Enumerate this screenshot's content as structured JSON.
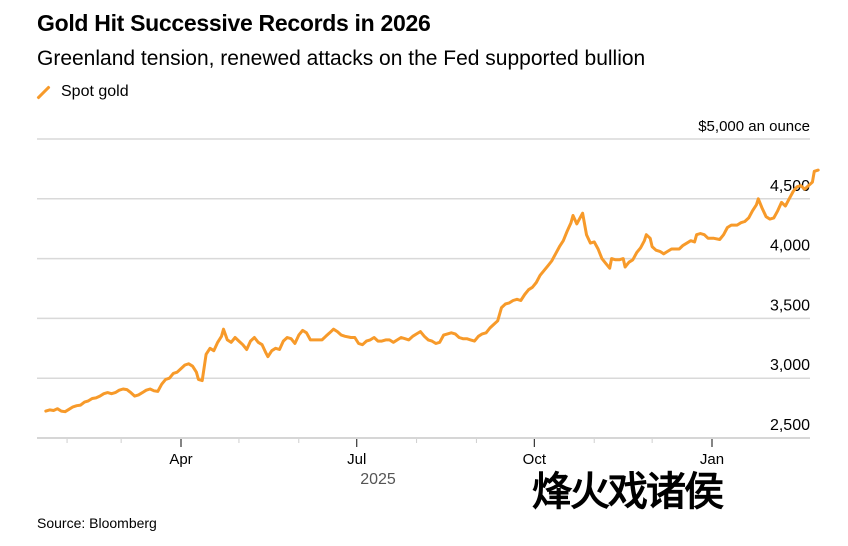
{
  "header": {
    "title": "Gold Hit Successive Records in 2026",
    "subtitle": "Greenland tension, renewed attacks on the Fed supported bullion"
  },
  "legend": {
    "label": "Spot gold",
    "color": "#f79a2a"
  },
  "footer": {
    "source": "Source: Bloomberg"
  },
  "watermark": {
    "text": "烽火戏诸侯"
  },
  "chart_data": {
    "type": "line",
    "title": "Gold Hit Successive Records in 2026",
    "subtitle": "Greenland tension, renewed attacks on the Fed supported bullion",
    "ylabel": "$ an ounce",
    "unit_label": "$5,000 an ounce",
    "ylim": [
      2500,
      5000
    ],
    "y_ticks": [
      {
        "value": 5000,
        "label": "$5,000 an ounce"
      },
      {
        "value": 4500,
        "label": "4,500"
      },
      {
        "value": 4000,
        "label": "4,000"
      },
      {
        "value": 3500,
        "label": "3,500"
      },
      {
        "value": 3000,
        "label": "3,000"
      },
      {
        "value": 2500,
        "label": "2,500"
      }
    ],
    "x_unit": "days since 2025-01-01",
    "xlim": [
      0,
      400
    ],
    "x_ticks_major": [
      {
        "value": 90,
        "label": "Apr"
      },
      {
        "value": 181,
        "label": "Jul"
      },
      {
        "value": 273,
        "label": "Oct"
      },
      {
        "value": 365,
        "label": "Jan"
      }
    ],
    "x_ticks_minor": [
      31,
      59,
      120,
      151,
      212,
      243,
      304,
      334
    ],
    "x_year_label": "2025",
    "grid": true,
    "legend_position": "top-left",
    "series": [
      {
        "name": "Spot gold",
        "color": "#f79a2a",
        "points": [
          [
            20,
            2725
          ],
          [
            22,
            2735
          ],
          [
            24,
            2730
          ],
          [
            26,
            2745
          ],
          [
            28,
            2725
          ],
          [
            30,
            2720
          ],
          [
            32,
            2740
          ],
          [
            34,
            2760
          ],
          [
            36,
            2770
          ],
          [
            38,
            2775
          ],
          [
            40,
            2800
          ],
          [
            42,
            2810
          ],
          [
            44,
            2830
          ],
          [
            46,
            2835
          ],
          [
            48,
            2850
          ],
          [
            50,
            2870
          ],
          [
            52,
            2880
          ],
          [
            54,
            2870
          ],
          [
            56,
            2880
          ],
          [
            58,
            2900
          ],
          [
            60,
            2910
          ],
          [
            62,
            2905
          ],
          [
            64,
            2880
          ],
          [
            66,
            2850
          ],
          [
            68,
            2860
          ],
          [
            70,
            2880
          ],
          [
            72,
            2900
          ],
          [
            74,
            2910
          ],
          [
            76,
            2895
          ],
          [
            78,
            2890
          ],
          [
            80,
            2950
          ],
          [
            82,
            2990
          ],
          [
            84,
            3000
          ],
          [
            86,
            3040
          ],
          [
            88,
            3050
          ],
          [
            90,
            3080
          ],
          [
            92,
            3110
          ],
          [
            94,
            3120
          ],
          [
            96,
            3100
          ],
          [
            98,
            3050
          ],
          [
            99,
            2990
          ],
          [
            101,
            2980
          ],
          [
            103,
            3200
          ],
          [
            105,
            3250
          ],
          [
            107,
            3230
          ],
          [
            109,
            3300
          ],
          [
            111,
            3350
          ],
          [
            112,
            3410
          ],
          [
            114,
            3320
          ],
          [
            116,
            3300
          ],
          [
            118,
            3340
          ],
          [
            120,
            3310
          ],
          [
            122,
            3280
          ],
          [
            124,
            3240
          ],
          [
            126,
            3310
          ],
          [
            128,
            3340
          ],
          [
            130,
            3300
          ],
          [
            132,
            3280
          ],
          [
            134,
            3210
          ],
          [
            135,
            3180
          ],
          [
            137,
            3230
          ],
          [
            139,
            3250
          ],
          [
            141,
            3240
          ],
          [
            143,
            3310
          ],
          [
            145,
            3340
          ],
          [
            147,
            3330
          ],
          [
            149,
            3290
          ],
          [
            151,
            3360
          ],
          [
            153,
            3400
          ],
          [
            155,
            3380
          ],
          [
            157,
            3320
          ],
          [
            160,
            3320
          ],
          [
            163,
            3320
          ],
          [
            165,
            3350
          ],
          [
            167,
            3380
          ],
          [
            169,
            3410
          ],
          [
            171,
            3390
          ],
          [
            173,
            3360
          ],
          [
            175,
            3350
          ],
          [
            178,
            3340
          ],
          [
            180,
            3340
          ],
          [
            182,
            3290
          ],
          [
            184,
            3280
          ],
          [
            186,
            3310
          ],
          [
            188,
            3320
          ],
          [
            190,
            3340
          ],
          [
            192,
            3310
          ],
          [
            194,
            3310
          ],
          [
            196,
            3320
          ],
          [
            198,
            3320
          ],
          [
            200,
            3300
          ],
          [
            202,
            3320
          ],
          [
            204,
            3340
          ],
          [
            206,
            3330
          ],
          [
            208,
            3320
          ],
          [
            210,
            3350
          ],
          [
            212,
            3370
          ],
          [
            214,
            3390
          ],
          [
            216,
            3350
          ],
          [
            218,
            3320
          ],
          [
            220,
            3310
          ],
          [
            222,
            3290
          ],
          [
            224,
            3300
          ],
          [
            226,
            3360
          ],
          [
            228,
            3370
          ],
          [
            230,
            3380
          ],
          [
            232,
            3370
          ],
          [
            234,
            3340
          ],
          [
            236,
            3330
          ],
          [
            238,
            3330
          ],
          [
            240,
            3320
          ],
          [
            242,
            3310
          ],
          [
            244,
            3350
          ],
          [
            246,
            3370
          ],
          [
            248,
            3380
          ],
          [
            250,
            3420
          ],
          [
            252,
            3450
          ],
          [
            254,
            3480
          ],
          [
            256,
            3590
          ],
          [
            258,
            3620
          ],
          [
            260,
            3630
          ],
          [
            262,
            3650
          ],
          [
            264,
            3660
          ],
          [
            266,
            3650
          ],
          [
            268,
            3700
          ],
          [
            270,
            3740
          ],
          [
            272,
            3760
          ],
          [
            274,
            3800
          ],
          [
            276,
            3860
          ],
          [
            278,
            3900
          ],
          [
            280,
            3940
          ],
          [
            282,
            3980
          ],
          [
            284,
            4040
          ],
          [
            286,
            4100
          ],
          [
            288,
            4150
          ],
          [
            290,
            4230
          ],
          [
            292,
            4300
          ],
          [
            293,
            4360
          ],
          [
            295,
            4290
          ],
          [
            297,
            4350
          ],
          [
            298,
            4380
          ],
          [
            300,
            4200
          ],
          [
            302,
            4130
          ],
          [
            304,
            4140
          ],
          [
            306,
            4080
          ],
          [
            308,
            4000
          ],
          [
            310,
            3960
          ],
          [
            312,
            3920
          ],
          [
            313,
            4000
          ],
          [
            315,
            3990
          ],
          [
            317,
            3990
          ],
          [
            319,
            4000
          ],
          [
            320,
            3930
          ],
          [
            322,
            3970
          ],
          [
            324,
            3990
          ],
          [
            326,
            4050
          ],
          [
            328,
            4090
          ],
          [
            330,
            4150
          ],
          [
            331,
            4200
          ],
          [
            333,
            4170
          ],
          [
            334,
            4100
          ],
          [
            336,
            4070
          ],
          [
            338,
            4060
          ],
          [
            340,
            4040
          ],
          [
            342,
            4060
          ],
          [
            344,
            4080
          ],
          [
            346,
            4080
          ],
          [
            348,
            4080
          ],
          [
            350,
            4110
          ],
          [
            352,
            4130
          ],
          [
            354,
            4150
          ],
          [
            356,
            4140
          ],
          [
            357,
            4200
          ],
          [
            359,
            4210
          ],
          [
            361,
            4200
          ],
          [
            363,
            4170
          ],
          [
            366,
            4170
          ],
          [
            369,
            4160
          ],
          [
            371,
            4200
          ],
          [
            373,
            4260
          ],
          [
            375,
            4280
          ],
          [
            378,
            4280
          ],
          [
            380,
            4300
          ],
          [
            382,
            4310
          ],
          [
            384,
            4340
          ],
          [
            386,
            4400
          ],
          [
            388,
            4450
          ],
          [
            389,
            4500
          ],
          [
            391,
            4420
          ],
          [
            393,
            4350
          ],
          [
            395,
            4330
          ],
          [
            397,
            4340
          ],
          [
            399,
            4400
          ],
          [
            401,
            4470
          ],
          [
            403,
            4440
          ],
          [
            405,
            4500
          ],
          [
            407,
            4560
          ],
          [
            409,
            4600
          ],
          [
            411,
            4610
          ],
          [
            413,
            4580
          ],
          [
            415,
            4610
          ],
          [
            417,
            4640
          ],
          [
            418,
            4730
          ],
          [
            420,
            4740
          ]
        ]
      }
    ]
  }
}
